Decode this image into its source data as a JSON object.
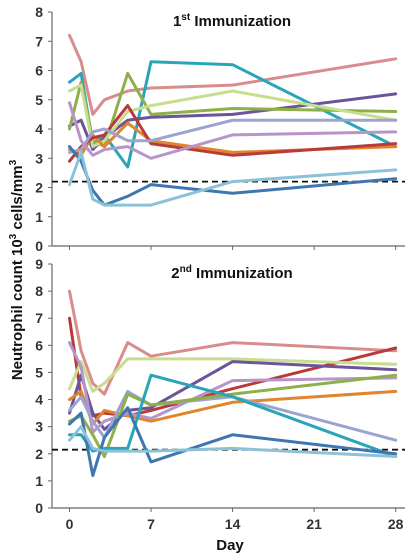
{
  "chart_data": {
    "type": "line",
    "ylabel_main": "Neutrophil count 10",
    "ylabel_sup": "3",
    "ylabel_rest": " cells/mm",
    "ylabel_sup2": "3",
    "xlabel": "Day",
    "x_ticks": [
      0,
      7,
      14,
      21,
      28
    ],
    "panels": [
      {
        "title_num": "1",
        "title_sup": "st",
        "title_text": " Immunization",
        "ylim": [
          0,
          8
        ],
        "y_ticks": [
          0,
          1,
          2,
          3,
          4,
          5,
          6,
          7,
          8
        ],
        "threshold": 2.2,
        "x": [
          0,
          1,
          2,
          3,
          5,
          7,
          14,
          28
        ],
        "series": [
          {
            "color": "#D98C8C",
            "values": [
              7.2,
              6.3,
              4.5,
              5.0,
              5.3,
              5.4,
              5.5,
              6.4
            ]
          },
          {
            "color": "#2AA5B8",
            "values": [
              5.6,
              5.9,
              3.5,
              3.8,
              2.7,
              6.3,
              6.2,
              3.4
            ]
          },
          {
            "color": "#6B5499",
            "values": [
              4.1,
              4.3,
              3.3,
              3.7,
              4.3,
              4.4,
              4.5,
              5.2
            ]
          },
          {
            "color": "#8DB04A",
            "values": [
              4.0,
              5.6,
              3.6,
              3.4,
              5.9,
              4.5,
              4.7,
              4.6
            ]
          },
          {
            "color": "#C8DD8D",
            "values": [
              5.3,
              5.5,
              3.4,
              3.6,
              4.6,
              4.8,
              5.3,
              4.3
            ]
          },
          {
            "color": "#E0852E",
            "values": [
              3.3,
              3.1,
              3.8,
              3.4,
              4.2,
              3.6,
              3.2,
              3.4
            ]
          },
          {
            "color": "#B83A3A",
            "values": [
              2.9,
              3.4,
              3.7,
              3.8,
              4.8,
              3.5,
              3.1,
              3.5
            ]
          },
          {
            "color": "#9BA3CF",
            "values": [
              3.2,
              3.3,
              3.9,
              4.0,
              3.6,
              3.6,
              4.3,
              4.3
            ]
          },
          {
            "color": "#B795C9",
            "values": [
              4.9,
              3.6,
              3.1,
              3.3,
              3.4,
              3.0,
              3.8,
              3.9
            ]
          },
          {
            "color": "#3E76B0",
            "values": [
              3.4,
              2.9,
              1.9,
              1.4,
              1.7,
              2.1,
              1.8,
              2.3
            ]
          },
          {
            "color": "#8CC2D8",
            "values": [
              2.1,
              3.2,
              1.6,
              1.4,
              1.4,
              1.4,
              2.2,
              2.6
            ]
          }
        ]
      },
      {
        "title_num": "2",
        "title_sup": "nd",
        "title_text": " Immunization",
        "ylim": [
          0,
          9
        ],
        "y_ticks": [
          0,
          1,
          2,
          3,
          4,
          5,
          6,
          7,
          8,
          9
        ],
        "threshold": 2.15,
        "x": [
          0,
          1,
          2,
          3,
          5,
          7,
          14,
          28
        ],
        "series": [
          {
            "color": "#D98C8C",
            "values": [
              8.0,
              5.8,
              4.6,
              4.2,
              6.1,
              5.6,
              6.1,
              5.8
            ]
          },
          {
            "color": "#B83A3A",
            "values": [
              7.0,
              4.1,
              3.4,
              3.5,
              3.4,
              3.6,
              4.4,
              5.9
            ]
          },
          {
            "color": "#C8DD8D",
            "values": [
              4.4,
              5.4,
              4.3,
              4.6,
              5.5,
              5.5,
              5.5,
              5.3
            ]
          },
          {
            "color": "#6B5499",
            "values": [
              3.5,
              4.9,
              3.5,
              2.9,
              3.6,
              3.7,
              5.4,
              5.1
            ]
          },
          {
            "color": "#E0852E",
            "values": [
              4.0,
              4.3,
              3.1,
              3.6,
              3.4,
              3.2,
              3.9,
              4.3
            ]
          },
          {
            "color": "#B795C9",
            "values": [
              6.1,
              5.2,
              2.8,
              3.2,
              3.5,
              3.3,
              4.7,
              4.8
            ]
          },
          {
            "color": "#9BA3CF",
            "values": [
              3.6,
              4.1,
              3.2,
              2.6,
              4.3,
              3.8,
              4.1,
              2.5
            ]
          },
          {
            "color": "#8DB04A",
            "values": [
              3.2,
              3.4,
              2.7,
              1.9,
              4.2,
              3.8,
              4.2,
              4.9
            ]
          },
          {
            "color": "#2AA5B8",
            "values": [
              2.7,
              2.7,
              2.1,
              2.2,
              2.2,
              4.9,
              4.1,
              1.9
            ]
          },
          {
            "color": "#3E76B0",
            "values": [
              3.1,
              3.5,
              1.2,
              2.6,
              3.7,
              1.7,
              2.7,
              2.0
            ]
          },
          {
            "color": "#8CC2D8",
            "values": [
              2.5,
              3.0,
              2.2,
              2.1,
              2.1,
              2.1,
              2.2,
              1.9
            ]
          }
        ]
      }
    ]
  }
}
